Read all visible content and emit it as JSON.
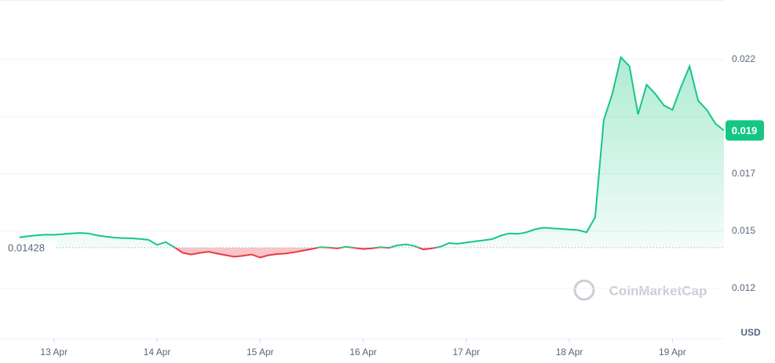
{
  "chart_data": {
    "type": "baseline-line",
    "xlim": [
      0,
      82
    ],
    "xticks": [
      {
        "value": 4,
        "label": "13 Apr"
      },
      {
        "value": 16,
        "label": "14 Apr"
      },
      {
        "value": 28,
        "label": "15 Apr"
      },
      {
        "value": 40,
        "label": "16 Apr"
      },
      {
        "value": 52,
        "label": "17 Apr"
      },
      {
        "value": 64,
        "label": "18 Apr"
      },
      {
        "value": 76,
        "label": "19 Apr"
      }
    ],
    "ylim": [
      0.0103,
      0.0251
    ],
    "yticks": [
      {
        "value": 0.0125,
        "label": "0.012"
      },
      {
        "value": 0.015,
        "label": "0.015"
      },
      {
        "value": 0.0175,
        "label": "0.017"
      },
      {
        "value": 0.02,
        "label": null
      },
      {
        "value": 0.0225,
        "label": "0.022"
      }
    ],
    "grid": true,
    "baseline": {
      "value": 0.01428,
      "label": "0.01428"
    },
    "last_price": {
      "value": 0.0194,
      "label": "0.019"
    },
    "currency": "USD",
    "watermark": "CoinMarketCap",
    "color_up": "#16c784",
    "color_down": "#ea3943",
    "values": [
      0.01473,
      0.01478,
      0.01482,
      0.01485,
      0.01484,
      0.01487,
      0.0149,
      0.01492,
      0.0149,
      0.01482,
      0.01476,
      0.01472,
      0.0147,
      0.01469,
      0.01466,
      0.01462,
      0.0144,
      0.01452,
      0.0143,
      0.01405,
      0.01398,
      0.01405,
      0.0141,
      0.01402,
      0.01395,
      0.01388,
      0.01392,
      0.01398,
      0.01385,
      0.01395,
      0.014,
      0.01402,
      0.01408,
      0.01415,
      0.01422,
      0.0143,
      0.01428,
      0.01425,
      0.01432,
      0.01427,
      0.01422,
      0.01425,
      0.0143,
      0.01427,
      0.01438,
      0.01442,
      0.01435,
      0.0142,
      0.01425,
      0.01432,
      0.01448,
      0.01445,
      0.0145,
      0.01455,
      0.0146,
      0.01465,
      0.0148,
      0.0149,
      0.01488,
      0.01495,
      0.01508,
      0.01515,
      0.01512,
      0.0151,
      0.01507,
      0.01505,
      0.01495,
      0.0156,
      0.01985,
      0.021,
      0.0226,
      0.0222,
      0.0201,
      0.0214,
      0.021,
      0.0205,
      0.0203,
      0.0213,
      0.0222,
      0.0207,
      0.0203,
      0.0197,
      0.0194
    ]
  }
}
